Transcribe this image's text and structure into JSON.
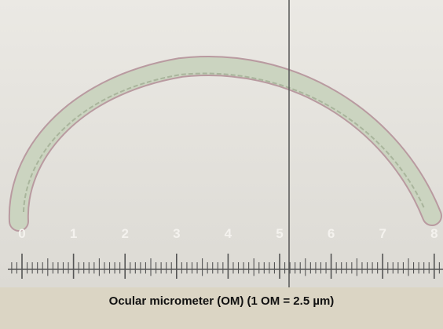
{
  "scale": {
    "labels": [
      0,
      1,
      2,
      3,
      4,
      5,
      6,
      7,
      8
    ]
  },
  "caption": "Ocular micrometer (OM) (1 OM = 2.5 µm)"
}
